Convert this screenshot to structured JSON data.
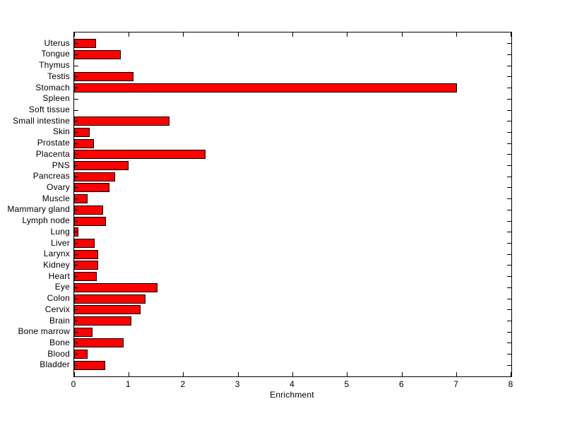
{
  "figure": {
    "background": "#ffffff",
    "plot_background": "#ffffff",
    "axis_color": "#000000"
  },
  "chart_data": {
    "type": "bar",
    "orientation": "horizontal",
    "title": "",
    "xlabel": "Enrichment",
    "ylabel": "",
    "xlim": [
      0,
      8
    ],
    "xticks": [
      0,
      1,
      2,
      3,
      4,
      5,
      6,
      7,
      8
    ],
    "xtick_labels": [
      "0",
      "1",
      "2",
      "3",
      "4",
      "5",
      "6",
      "7",
      "8"
    ],
    "grid": false,
    "legend": null,
    "bar_color": "#ff0000",
    "bar_edge_color": "#000000",
    "categories": [
      "Uterus",
      "Tongue",
      "Thymus",
      "Testis",
      "Stomach",
      "Spleen",
      "Soft tissue",
      "Small intestine",
      "Skin",
      "Prostate",
      "Placenta",
      "PNS",
      "Pancreas",
      "Ovary",
      "Muscle",
      "Mammary gland",
      "Lymph node",
      "Lung",
      "Liver",
      "Larynx",
      "Kidney",
      "Heart",
      "Eye",
      "Colon",
      "Cervix",
      "Brain",
      "Bone marrow",
      "Bone",
      "Blood",
      "Bladder"
    ],
    "values": [
      0.4,
      0.85,
      0,
      1.08,
      7.0,
      0,
      0,
      1.75,
      0.29,
      0.36,
      2.4,
      0.99,
      0.75,
      0.64,
      0.24,
      0.53,
      0.58,
      0.08,
      0.37,
      0.44,
      0.44,
      0.41,
      1.53,
      1.31,
      1.21,
      1.04,
      0.33,
      0.91,
      0.25,
      0.57
    ]
  }
}
